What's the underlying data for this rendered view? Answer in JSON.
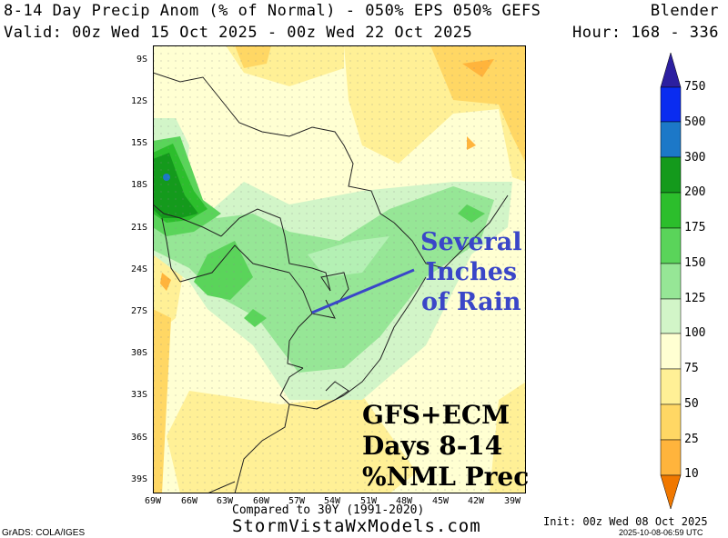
{
  "header": {
    "title_left": "8-14 Day Precip Anom (% of Normal) - 050% EPS 050% GEFS",
    "title_right": "Blender",
    "valid_line": "Valid: 00z Wed 15 Oct 2025 - 00z Wed 22 Oct 2025",
    "hour_line": "Hour: 168 - 336"
  },
  "map": {
    "lat_labels": [
      "9S",
      "12S",
      "15S",
      "18S",
      "21S",
      "24S",
      "27S",
      "30S",
      "33S",
      "36S",
      "39S"
    ],
    "lon_labels": [
      "69W",
      "66W",
      "63W",
      "60W",
      "57W",
      "54W",
      "51W",
      "48W",
      "45W",
      "42W",
      "39W"
    ],
    "annotation_rain": [
      "Several",
      "Inches",
      "of Rain"
    ],
    "annotation_box": [
      "GFS+ECM",
      "Days 8-14",
      "%NML Prec"
    ],
    "colors": {
      "annotation_rain": "#3a46c8",
      "arrow": "#3a46c8"
    }
  },
  "colorbar": {
    "levels": [
      "750",
      "500",
      "300",
      "200",
      "175",
      "150",
      "125",
      "100",
      "75",
      "50",
      "25",
      "10"
    ],
    "colors": [
      "#2c1fa0",
      "#0a2cf0",
      "#1c78c8",
      "#149a1c",
      "#2cbe2c",
      "#5ad45a",
      "#96e696",
      "#d2f5c8",
      "#ffffd2",
      "#fff096",
      "#ffd764",
      "#ffb43c",
      "#ff9600",
      "#f07800"
    ]
  },
  "footer": {
    "compared": "Compared to 30Y (1991-2020)",
    "site": "StormVistaWxModels.com",
    "grads": "GrADS: COLA/IGES",
    "init": "Init: 00z Wed 08 Oct 2025",
    "timestamp": "2025-10-08-06:59 UTC"
  }
}
